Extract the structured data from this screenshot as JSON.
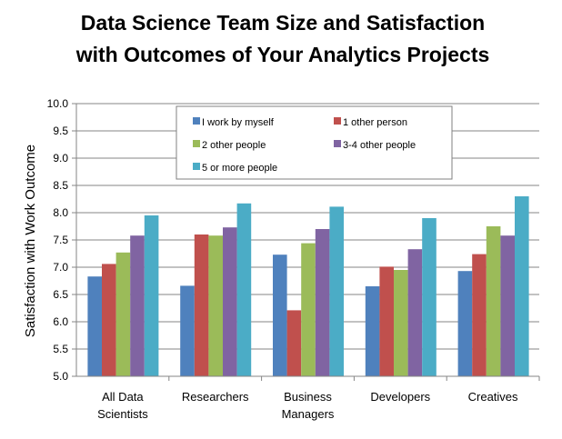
{
  "chart_data": {
    "type": "bar",
    "title_lines": [
      "Data Science Team Size and Satisfaction",
      "with Outcomes of Your Analytics Projects"
    ],
    "ylabel": "Satisfaction with Work Outcome",
    "xlabel": "",
    "ylim": [
      5.0,
      10.0
    ],
    "yticks": [
      "5.0",
      "5.5",
      "6.0",
      "6.5",
      "7.0",
      "7.5",
      "8.0",
      "8.5",
      "9.0",
      "9.5",
      "10.0"
    ],
    "categories": [
      [
        "All Data",
        "Scientists"
      ],
      [
        "Researchers"
      ],
      [
        "Business",
        "Managers"
      ],
      [
        "Developers"
      ],
      [
        "Creatives"
      ]
    ],
    "grid": true,
    "legend_position": "top-center",
    "series": [
      {
        "name": "I work by myself",
        "color": "#4F81BD",
        "values": [
          6.83,
          6.66,
          7.23,
          6.65,
          6.93
        ]
      },
      {
        "name": "1 other person",
        "color": "#C0504D",
        "values": [
          7.06,
          7.6,
          6.21,
          7.01,
          7.24
        ]
      },
      {
        "name": "2 other people",
        "color": "#9BBB59",
        "values": [
          7.27,
          7.58,
          7.44,
          6.95,
          7.75
        ]
      },
      {
        "name": "3-4 other people",
        "color": "#8064A2",
        "values": [
          7.58,
          7.73,
          7.7,
          7.33,
          7.58
        ]
      },
      {
        "name": "5 or more people",
        "color": "#4BACC6",
        "values": [
          7.95,
          8.17,
          8.11,
          7.9,
          8.3
        ]
      }
    ]
  }
}
